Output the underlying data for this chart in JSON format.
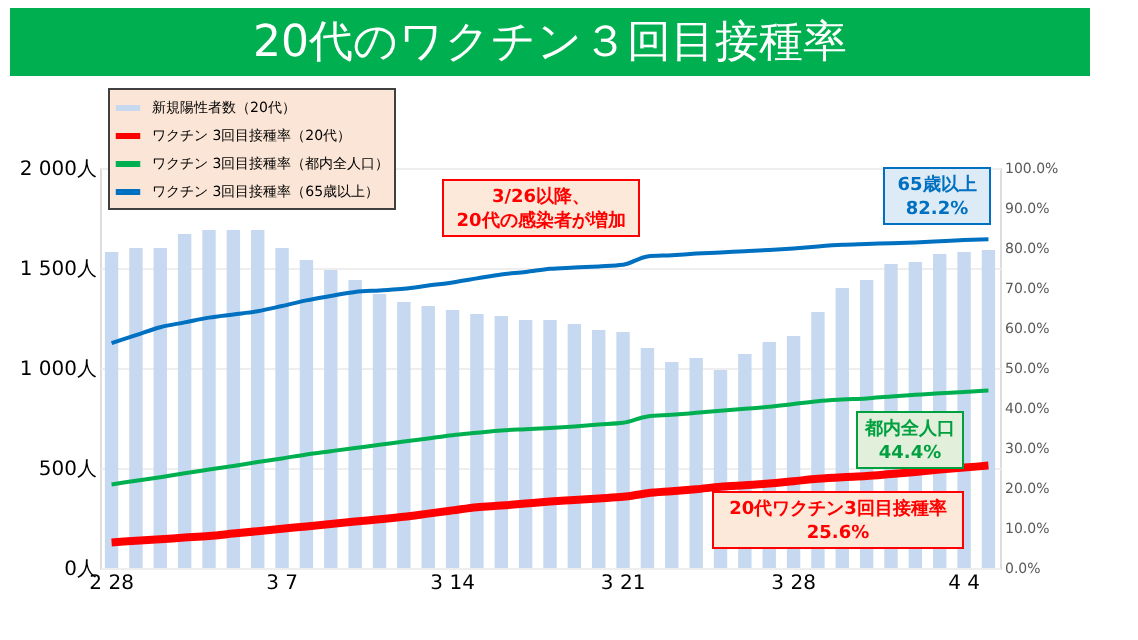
{
  "chart_data": {
    "type": "bar",
    "title": "20代のワクチン３回目接種率",
    "categories": [
      "2 28",
      null,
      null,
      null,
      null,
      null,
      null,
      "3 7",
      null,
      null,
      null,
      null,
      null,
      null,
      "3 14",
      null,
      null,
      null,
      null,
      null,
      null,
      "3 21",
      null,
      null,
      null,
      null,
      null,
      null,
      "3 28",
      null,
      null,
      null,
      null,
      null,
      null,
      "4 4",
      null
    ],
    "series": [
      {
        "name": "新規陽性者数（20代）",
        "color": "#c6d9f0",
        "values": [
          1580,
          1600,
          1600,
          1670,
          1690,
          1690,
          1690,
          1600,
          1540,
          1490,
          1440,
          1370,
          1330,
          1310,
          1290,
          1270,
          1260,
          1240,
          1240,
          1220,
          1190,
          1180,
          1100,
          1030,
          1050,
          990,
          1070,
          1130,
          1160,
          1280,
          1400,
          1440,
          1520,
          1530,
          1570,
          1580,
          1590
        ]
      },
      {
        "name": "ワクチン 3回目接種率（20代）",
        "type": "line",
        "axis": "y2",
        "color": "#ff0000",
        "values": [
          6.4,
          6.8,
          7.2,
          7.6,
          8.0,
          8.6,
          9.2,
          9.8,
          10.4,
          11.0,
          11.6,
          12.2,
          12.8,
          13.6,
          14.4,
          15.2,
          15.6,
          16.1,
          16.6,
          17.0,
          17.4,
          17.8,
          18.7,
          19.2,
          19.7,
          20.3,
          20.7,
          21.1,
          21.7,
          22.3,
          22.7,
          23.0,
          23.5,
          24.0,
          24.6,
          25.1,
          25.6
        ]
      },
      {
        "name": "ワクチン 3回目接種率（都内全人口）",
        "type": "line",
        "axis": "y2",
        "color": "#00b050",
        "values": [
          20.9,
          21.8,
          22.7,
          23.7,
          24.6,
          25.5,
          26.5,
          27.4,
          28.4,
          29.2,
          30.0,
          30.8,
          31.6,
          32.4,
          33.2,
          33.8,
          34.4,
          34.7,
          35.0,
          35.4,
          35.9,
          36.3,
          37.9,
          38.3,
          38.8,
          39.3,
          39.8,
          40.3,
          41.0,
          41.7,
          42.1,
          42.4,
          42.9,
          43.3,
          43.7,
          44.0,
          44.4
        ]
      },
      {
        "name": "ワクチン 3回目接種率（65歳以上）",
        "type": "line",
        "axis": "y2",
        "color": "#0070c0",
        "values": [
          56.2,
          58.2,
          60.2,
          61.4,
          62.6,
          63.4,
          64.2,
          65.5,
          66.9,
          68.0,
          69.0,
          69.4,
          69.8,
          70.6,
          71.4,
          72.4,
          73.4,
          74.0,
          74.8,
          75.1,
          75.4,
          75.8,
          77.9,
          78.2,
          78.6,
          78.9,
          79.2,
          79.5,
          79.9,
          80.4,
          80.8,
          81.0,
          81.2,
          81.4,
          81.7,
          82.0,
          82.2
        ]
      }
    ],
    "ylim": [
      0,
      2000
    ],
    "yticks": [
      {
        "value": 0,
        "label": "0人"
      },
      {
        "value": 500,
        "label": "500人"
      },
      {
        "value": 1000,
        "label": "1 000人"
      },
      {
        "value": 1500,
        "label": "1 500人"
      },
      {
        "value": 2000,
        "label": "2 000人"
      }
    ],
    "y2lim": [
      0,
      100
    ],
    "y2ticks": [
      {
        "value": 0,
        "label": "0.0%"
      },
      {
        "value": 10,
        "label": "10.0%"
      },
      {
        "value": 20,
        "label": "20.0%"
      },
      {
        "value": 30,
        "label": "30.0%"
      },
      {
        "value": 40,
        "label": "40.0%"
      },
      {
        "value": 50,
        "label": "50.0%"
      },
      {
        "value": 60,
        "label": "60.0%"
      },
      {
        "value": 70,
        "label": "70.0%"
      },
      {
        "value": 80,
        "label": "80.0%"
      },
      {
        "value": 90,
        "label": "90.0%"
      },
      {
        "value": 100,
        "label": "100.0%"
      }
    ],
    "grid": "y",
    "legend": "top left",
    "annotations": [
      "3/26以降、\n20代の感染者が増加",
      "65歳以上\n82.2%",
      "都内全人口\n44.4%",
      "20代ワクチン3回目接種率\n25.6%"
    ]
  }
}
